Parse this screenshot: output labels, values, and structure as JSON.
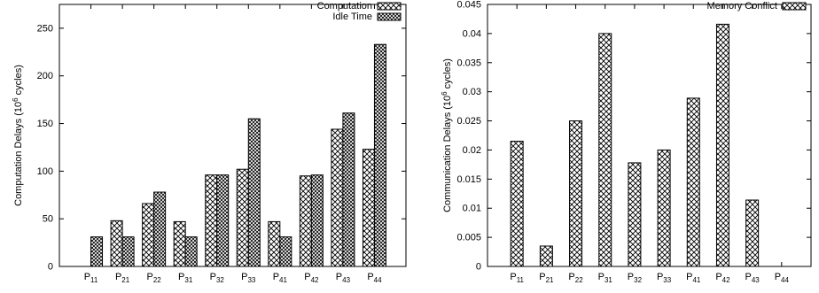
{
  "chart_data": [
    {
      "type": "bar",
      "categories": [
        {
          "base": "P",
          "sub": "11"
        },
        {
          "base": "P",
          "sub": "21"
        },
        {
          "base": "P",
          "sub": "22"
        },
        {
          "base": "P",
          "sub": "31"
        },
        {
          "base": "P",
          "sub": "32"
        },
        {
          "base": "P",
          "sub": "33"
        },
        {
          "base": "P",
          "sub": "41"
        },
        {
          "base": "P",
          "sub": "42"
        },
        {
          "base": "P",
          "sub": "43"
        },
        {
          "base": "P",
          "sub": "44"
        }
      ],
      "series": [
        {
          "name": "Computation",
          "pattern": "crosshatch",
          "values": [
            0,
            48,
            66,
            47,
            96,
            102,
            47,
            95,
            144,
            123
          ]
        },
        {
          "name": "Idle Time",
          "pattern": "dense-crosshatch",
          "values": [
            31,
            31,
            78,
            31,
            96,
            155,
            31,
            96,
            161,
            233
          ]
        }
      ],
      "ylabel": {
        "prefix": "Computation Delays (10",
        "sup": "6",
        "suffix": " cycles)"
      },
      "xlabel": "",
      "title": "",
      "ylim": [
        0,
        275
      ],
      "yticks": [
        "0",
        "50",
        "100",
        "150",
        "200",
        "250"
      ],
      "ytick_values": [
        0,
        50,
        100,
        150,
        200,
        250
      ],
      "legend": "top-right",
      "grid": false
    },
    {
      "type": "bar",
      "categories": [
        {
          "base": "P",
          "sub": "11"
        },
        {
          "base": "P",
          "sub": "21"
        },
        {
          "base": "P",
          "sub": "22"
        },
        {
          "base": "P",
          "sub": "31"
        },
        {
          "base": "P",
          "sub": "32"
        },
        {
          "base": "P",
          "sub": "33"
        },
        {
          "base": "P",
          "sub": "41"
        },
        {
          "base": "P",
          "sub": "42"
        },
        {
          "base": "P",
          "sub": "43"
        },
        {
          "base": "P",
          "sub": "44"
        }
      ],
      "series": [
        {
          "name": "Memory Conflict",
          "pattern": "crosshatch",
          "values": [
            0.0215,
            0.0035,
            0.025,
            0.04,
            0.0178,
            0.02,
            0.0289,
            0.0416,
            0.0114,
            0
          ]
        }
      ],
      "ylabel": {
        "prefix": "Communication Delays (10",
        "sup": "6",
        "suffix": " cycles)"
      },
      "xlabel": "",
      "title": "",
      "ylim": [
        0,
        0.045
      ],
      "yticks": [
        "0",
        "0.005",
        "0.01",
        "0.015",
        "0.02",
        "0.025",
        "0.03",
        "0.035",
        "0.04",
        "0.045"
      ],
      "ytick_values": [
        0,
        0.005,
        0.01,
        0.015,
        0.02,
        0.025,
        0.03,
        0.035,
        0.04,
        0.045
      ],
      "legend": "top-right",
      "grid": false
    }
  ]
}
